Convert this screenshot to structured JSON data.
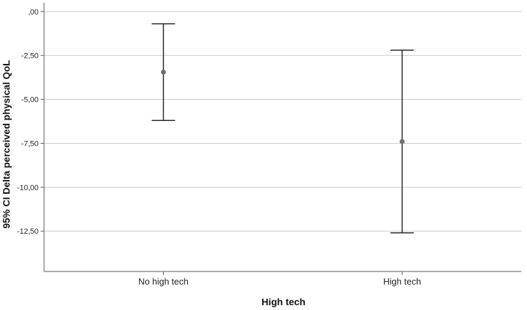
{
  "chart_data": {
    "type": "errorbar",
    "xlabel": "High tech",
    "ylabel": "95% CI Delta perceived physical QoL",
    "categories": [
      "No high tech",
      "High tech"
    ],
    "series": [
      {
        "means": [
          -3.45,
          -7.4
        ],
        "lower": [
          -6.2,
          -12.6
        ],
        "upper": [
          -0.7,
          -2.2
        ]
      }
    ],
    "ylim": [
      -14.8,
      0.5
    ],
    "yticks": [
      0,
      -2.5,
      -5,
      -7.5,
      -10,
      -12.5
    ],
    "ytick_labels": [
      ",00",
      "-2,50",
      "-5,00",
      "-7,50",
      "-10,00",
      "-12,50"
    ],
    "grid": true,
    "colors": {
      "marker": "#6e6e6e",
      "line": "#222222",
      "grid": "#c8c8c8",
      "axis": "#555555"
    }
  }
}
